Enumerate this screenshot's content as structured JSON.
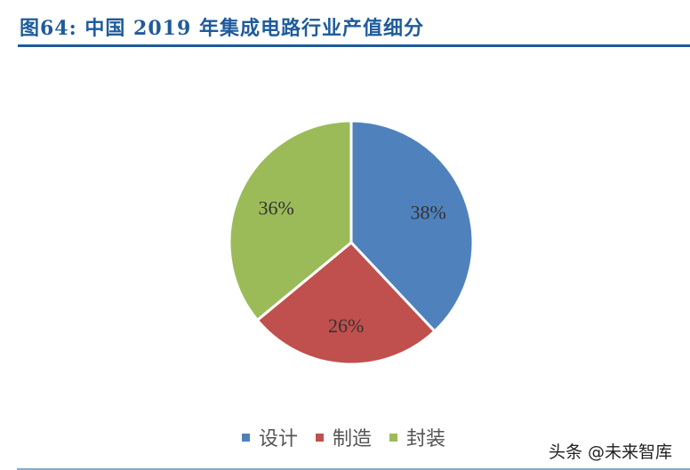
{
  "title": "图64: 中国 2019 年集成电路行业产值细分",
  "watermark": "头条 @未来智库",
  "chart_data": {
    "type": "pie",
    "title": "图64: 中国 2019 年集成电路行业产值细分",
    "categories": [
      "设计",
      "制造",
      "封装"
    ],
    "values": [
      38,
      26,
      36
    ],
    "labels": [
      "38%",
      "26%",
      "36%"
    ],
    "colors": [
      "#4f81bd",
      "#c0504d",
      "#9bbb59"
    ],
    "start_angle_deg": 0,
    "direction": "clockwise",
    "legend_position": "bottom"
  },
  "legend": [
    {
      "label": "设计",
      "color": "#4f81bd"
    },
    {
      "label": "制造",
      "color": "#c0504d"
    },
    {
      "label": "封装",
      "color": "#9bbb59"
    }
  ]
}
